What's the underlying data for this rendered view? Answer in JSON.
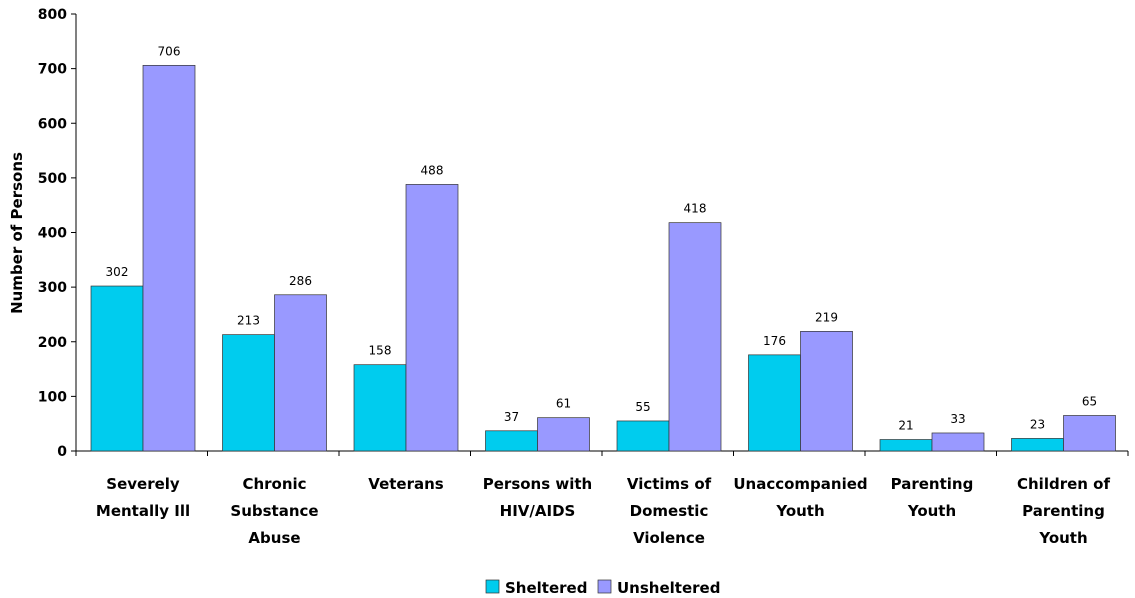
{
  "chart_data": {
    "type": "bar",
    "title": "",
    "xlabel": "",
    "ylabel": "Number of Persons",
    "ylim": [
      0,
      800
    ],
    "yticks": [
      0,
      100,
      200,
      300,
      400,
      500,
      600,
      700,
      800
    ],
    "grid": false,
    "legend_position": "bottom-center",
    "categories": [
      [
        "Severely",
        "Mentally Ill"
      ],
      [
        "Chronic",
        "Substance",
        "Abuse"
      ],
      [
        "Veterans"
      ],
      [
        "Persons with",
        "HIV/AIDS"
      ],
      [
        "Victims of",
        "Domestic",
        "Violence"
      ],
      [
        "Unaccompanied",
        "Youth"
      ],
      [
        "Parenting",
        "Youth"
      ],
      [
        "Children of",
        "Parenting",
        "Youth"
      ]
    ],
    "series": [
      {
        "name": "Sheltered",
        "color": "#00CCEE",
        "values": [
          302,
          213,
          158,
          37,
          55,
          176,
          21,
          23
        ]
      },
      {
        "name": "Unsheltered",
        "color": "#9999FF",
        "values": [
          706,
          286,
          488,
          61,
          418,
          219,
          33,
          65
        ]
      }
    ]
  }
}
